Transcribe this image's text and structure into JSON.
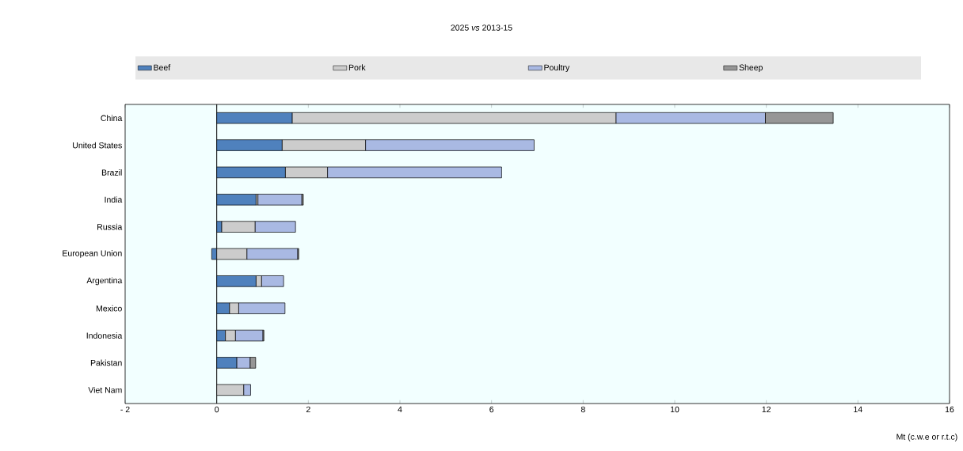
{
  "chart_data": {
    "type": "bar",
    "title": "2025 *vs* 2013-15",
    "xlabel": "Mt (c.w.e or r.t.c)",
    "orientation": "horizontal",
    "stacked": true,
    "legend": "top",
    "grid": false,
    "categories": [
      "China",
      "United States",
      "Brazil",
      "India",
      "Russia",
      "European Union",
      "Argentina",
      "Mexico",
      "Indonesia",
      "Pakistan",
      "Viet Nam"
    ],
    "series": [
      {
        "name": "Beef",
        "color": "#4f81bd",
        "values": [
          1.65,
          1.43,
          1.5,
          0.86,
          0.11,
          -0.11,
          0.86,
          0.28,
          0.19,
          0.44,
          0
        ]
      },
      {
        "name": "Pork",
        "color": "#cccccc",
        "values": [
          7.07,
          1.82,
          0.92,
          0.04,
          0.73,
          0.66,
          0.12,
          0.2,
          0.22,
          0,
          0.59
        ]
      },
      {
        "name": "Poultry",
        "color": "#a9b9e3",
        "values": [
          3.26,
          3.68,
          3.8,
          0.96,
          0.88,
          1.11,
          0.48,
          1.01,
          0.6,
          0.29,
          0.15
        ]
      },
      {
        "name": "Sheep",
        "color": "#969696",
        "values": [
          1.48,
          0,
          0,
          0.03,
          0,
          0.02,
          0,
          0,
          0.02,
          0.12,
          0
        ]
      }
    ],
    "ref_lines": [
      {
        "axis": "x",
        "value": 0,
        "color": "#000000"
      }
    ],
    "xlim": [
      -2,
      16
    ],
    "xticks": [
      {
        "value": -2,
        "label": "- 2"
      },
      0,
      2,
      4,
      6,
      8,
      10,
      12,
      14,
      16
    ]
  }
}
